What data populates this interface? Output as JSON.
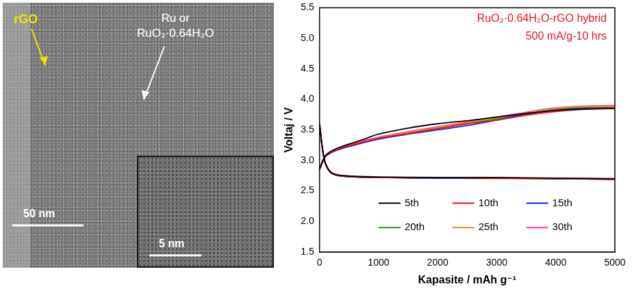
{
  "image_panel": {
    "labels": [
      {
        "text": "rGO",
        "color": "#f2e100"
      },
      {
        "lines": [
          "Ru or",
          "RuO₂·0.64H₂O"
        ],
        "color": "#ffffff"
      }
    ],
    "scale_bars": [
      "50 nm",
      "5 nm"
    ]
  },
  "chart_data": {
    "type": "line",
    "annotations": [
      {
        "text": "RuO₂·0.64H₂O-rGO hybrid",
        "color": "#e8141e"
      },
      {
        "text": "500 mA/g-10 hrs",
        "color": "#e8141e"
      }
    ],
    "x_label": "Kapasite / mAh g⁻¹",
    "y_label": "Voltaj / V",
    "xlim": [
      0,
      5000
    ],
    "xticks": [
      0,
      1000,
      2000,
      3000,
      4000,
      5000
    ],
    "ylim": [
      1.5,
      5.5
    ],
    "yticks": [
      1.5,
      {
        "value": 2,
        "label": "2.0"
      },
      2.5,
      {
        "value": 3,
        "label": "3.0"
      },
      3.5,
      {
        "value": 4,
        "label": "4.0"
      },
      4.5,
      {
        "value": 5,
        "label": "5.0"
      },
      5.5
    ],
    "grid": false,
    "legend": "bottom",
    "series": [
      {
        "name": "5th",
        "color": "#000000",
        "discharge": {
          "x": [
            0,
            50,
            100,
            200,
            400,
            1000,
            2000,
            3000,
            4000,
            5000
          ],
          "values": [
            3.6,
            3.2,
            2.95,
            2.8,
            2.75,
            2.73,
            2.72,
            2.72,
            2.71,
            2.7
          ]
        },
        "charge": {
          "x": [
            0,
            100,
            300,
            700,
            1000,
            1500,
            2000,
            2500,
            3000,
            3500,
            4000,
            4500,
            5000
          ],
          "values": [
            2.85,
            3.08,
            3.2,
            3.33,
            3.43,
            3.53,
            3.6,
            3.65,
            3.71,
            3.77,
            3.82,
            3.84,
            3.85
          ]
        }
      },
      {
        "name": "10th",
        "color": "#e8141e",
        "discharge": {
          "x": [
            0,
            50,
            100,
            200,
            400,
            1000,
            2000,
            3000,
            4000,
            5000
          ],
          "values": [
            3.58,
            3.18,
            2.94,
            2.79,
            2.74,
            2.72,
            2.72,
            2.71,
            2.7,
            2.69
          ]
        },
        "charge": {
          "x": [
            0,
            100,
            300,
            700,
            1000,
            1500,
            2000,
            2500,
            3000,
            3500,
            4000,
            4500,
            5000
          ],
          "values": [
            2.86,
            3.07,
            3.18,
            3.29,
            3.36,
            3.44,
            3.52,
            3.6,
            3.66,
            3.74,
            3.8,
            3.84,
            3.86
          ]
        }
      },
      {
        "name": "15th",
        "color": "#1a1aff",
        "discharge": {
          "x": [
            0,
            50,
            100,
            200,
            400,
            1000,
            2000,
            3000,
            4000,
            5000
          ],
          "values": [
            3.6,
            3.19,
            2.95,
            2.8,
            2.74,
            2.72,
            2.71,
            2.71,
            2.7,
            2.69
          ]
        },
        "charge": {
          "x": [
            0,
            100,
            300,
            700,
            1000,
            1500,
            2000,
            2500,
            3000,
            3500,
            4000,
            4500,
            5000
          ],
          "values": [
            2.85,
            3.06,
            3.17,
            3.28,
            3.35,
            3.43,
            3.5,
            3.57,
            3.66,
            3.76,
            3.82,
            3.85,
            3.86
          ]
        }
      },
      {
        "name": "20th",
        "color": "#1a9a1a",
        "discharge": {
          "x": [
            0,
            50,
            100,
            200,
            400,
            1000,
            2000,
            3000,
            4000,
            5000
          ],
          "values": [
            3.59,
            3.18,
            2.94,
            2.79,
            2.74,
            2.72,
            2.71,
            2.71,
            2.7,
            2.69
          ]
        },
        "charge": {
          "x": [
            0,
            100,
            300,
            700,
            1000,
            1500,
            2000,
            2500,
            3000,
            3500,
            4000,
            4500,
            5000
          ],
          "values": [
            2.86,
            3.06,
            3.17,
            3.28,
            3.35,
            3.44,
            3.52,
            3.6,
            3.68,
            3.76,
            3.83,
            3.86,
            3.87
          ]
        }
      },
      {
        "name": "25th",
        "color": "#f08c00",
        "discharge": {
          "x": [
            0,
            50,
            100,
            200,
            400,
            1000,
            2000,
            3000,
            4000,
            5000
          ],
          "values": [
            3.6,
            3.19,
            2.95,
            2.8,
            2.74,
            2.72,
            2.71,
            2.7,
            2.7,
            2.69
          ]
        },
        "charge": {
          "x": [
            0,
            100,
            300,
            700,
            1000,
            1500,
            2000,
            2500,
            3000,
            3500,
            4000,
            4500,
            5000
          ],
          "values": [
            2.86,
            3.07,
            3.18,
            3.3,
            3.37,
            3.46,
            3.54,
            3.62,
            3.7,
            3.78,
            3.85,
            3.88,
            3.89
          ]
        }
      },
      {
        "name": "30th",
        "color": "#ff2dcd",
        "discharge": {
          "x": [
            0,
            50,
            100,
            200,
            400,
            1000,
            2000,
            3000,
            4000,
            5000
          ],
          "values": [
            3.61,
            3.2,
            2.96,
            2.8,
            2.75,
            2.72,
            2.72,
            2.71,
            2.7,
            2.69
          ]
        },
        "charge": {
          "x": [
            0,
            100,
            300,
            700,
            1000,
            1500,
            2000,
            2500,
            3000,
            3500,
            4000,
            4500,
            5000
          ],
          "values": [
            2.86,
            3.08,
            3.19,
            3.31,
            3.38,
            3.47,
            3.55,
            3.63,
            3.71,
            3.79,
            3.86,
            3.89,
            3.9
          ]
        }
      }
    ]
  }
}
